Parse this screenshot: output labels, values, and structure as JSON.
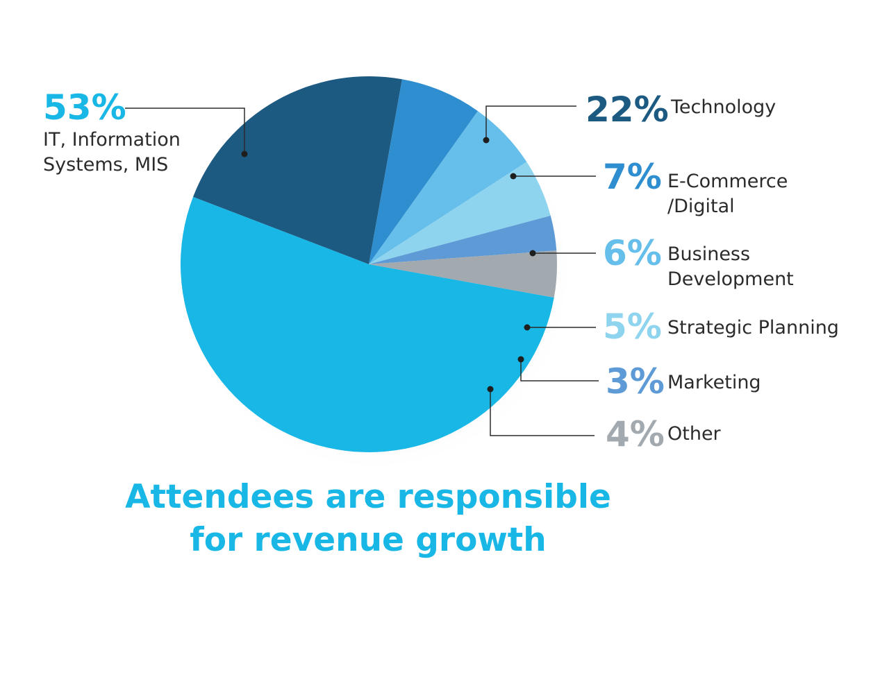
{
  "chart_data": {
    "type": "pie",
    "title_lines": [
      "Attendees are responsible",
      "for revenue growth"
    ],
    "slices": [
      {
        "label_lines": [
          "Technology"
        ],
        "value": 22,
        "pct_text": "22%",
        "color": "#1d5a82",
        "pct_color": "#1d5a82"
      },
      {
        "label_lines": [
          "E-Commerce",
          "/Digital"
        ],
        "value": 7,
        "pct_text": "7%",
        "color": "#2e8ed0",
        "pct_color": "#2e8ed0"
      },
      {
        "label_lines": [
          "Business",
          "Development"
        ],
        "value": 6,
        "pct_text": "6%",
        "color": "#65bfea",
        "pct_color": "#65bfea"
      },
      {
        "label_lines": [
          "Strategic Planning"
        ],
        "value": 5,
        "pct_text": "5%",
        "color": "#8fd4ee",
        "pct_color": "#8fd4ee"
      },
      {
        "label_lines": [
          "Marketing"
        ],
        "value": 3,
        "pct_text": "3%",
        "color": "#5e9bd6",
        "pct_color": "#5e9bd6"
      },
      {
        "label_lines": [
          "Other"
        ],
        "value": 4,
        "pct_text": "4%",
        "color": "#a2a9af",
        "pct_color": "#a2a9af"
      },
      {
        "label_lines": [
          "IT, Information",
          "Systems, MIS"
        ],
        "value": 53,
        "pct_text": "53%",
        "color": "#19b7e5",
        "pct_color": "#19b7e5"
      }
    ]
  }
}
